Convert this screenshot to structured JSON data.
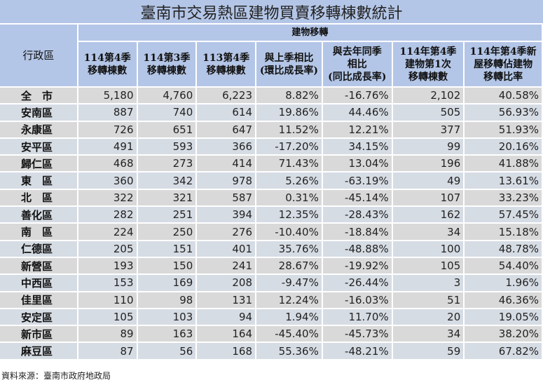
{
  "title": "臺南市交易熱區建物買賣移轉棟數統計",
  "header": {
    "district": "行政區",
    "group": "建物移轉",
    "columns": [
      "114第4季\n移轉棟數",
      "114第3季\n移轉棟數",
      "113第4季\n移轉棟數",
      "與上季相比\n(環比成長率)",
      "與去年同季\n相比\n(同比成長率)",
      "114年第4季\n建物第1次\n移轉棟數",
      "114年第4季新\n屋移轉佔建物\n移轉比率"
    ]
  },
  "rows": [
    {
      "district": "全　市",
      "q4_114": "5,180",
      "q3_114": "4,760",
      "q4_113": "6,223",
      "qoq": "8.82%",
      "yoy": "-16.76%",
      "first_transfer": "2,102",
      "new_ratio": "40.58%"
    },
    {
      "district": "安南區",
      "q4_114": "887",
      "q3_114": "740",
      "q4_113": "614",
      "qoq": "19.86%",
      "yoy": "44.46%",
      "first_transfer": "505",
      "new_ratio": "56.93%"
    },
    {
      "district": "永康區",
      "q4_114": "726",
      "q3_114": "651",
      "q4_113": "647",
      "qoq": "11.52%",
      "yoy": "12.21%",
      "first_transfer": "377",
      "new_ratio": "51.93%"
    },
    {
      "district": "安平區",
      "q4_114": "491",
      "q3_114": "593",
      "q4_113": "366",
      "qoq": "-17.20%",
      "yoy": "34.15%",
      "first_transfer": "99",
      "new_ratio": "20.16%"
    },
    {
      "district": "歸仁區",
      "q4_114": "468",
      "q3_114": "273",
      "q4_113": "414",
      "qoq": "71.43%",
      "yoy": "13.04%",
      "first_transfer": "196",
      "new_ratio": "41.88%"
    },
    {
      "district": "東　區",
      "q4_114": "360",
      "q3_114": "342",
      "q4_113": "978",
      "qoq": "5.26%",
      "yoy": "-63.19%",
      "first_transfer": "49",
      "new_ratio": "13.61%"
    },
    {
      "district": "北　區",
      "q4_114": "322",
      "q3_114": "321",
      "q4_113": "587",
      "qoq": "0.31%",
      "yoy": "-45.14%",
      "first_transfer": "107",
      "new_ratio": "33.23%"
    },
    {
      "district": "善化區",
      "q4_114": "282",
      "q3_114": "251",
      "q4_113": "394",
      "qoq": "12.35%",
      "yoy": "-28.43%",
      "first_transfer": "162",
      "new_ratio": "57.45%"
    },
    {
      "district": "南　區",
      "q4_114": "224",
      "q3_114": "250",
      "q4_113": "276",
      "qoq": "-10.40%",
      "yoy": "-18.84%",
      "first_transfer": "34",
      "new_ratio": "15.18%"
    },
    {
      "district": "仁德區",
      "q4_114": "205",
      "q3_114": "151",
      "q4_113": "401",
      "qoq": "35.76%",
      "yoy": "-48.88%",
      "first_transfer": "100",
      "new_ratio": "48.78%"
    },
    {
      "district": "新營區",
      "q4_114": "193",
      "q3_114": "150",
      "q4_113": "241",
      "qoq": "28.67%",
      "yoy": "-19.92%",
      "first_transfer": "105",
      "new_ratio": "54.40%"
    },
    {
      "district": "中西區",
      "q4_114": "153",
      "q3_114": "169",
      "q4_113": "208",
      "qoq": "-9.47%",
      "yoy": "-26.44%",
      "first_transfer": "3",
      "new_ratio": "1.96%"
    },
    {
      "district": "佳里區",
      "q4_114": "110",
      "q3_114": "98",
      "q4_113": "131",
      "qoq": "12.24%",
      "yoy": "-16.03%",
      "first_transfer": "51",
      "new_ratio": "46.36%"
    },
    {
      "district": "安定區",
      "q4_114": "105",
      "q3_114": "103",
      "q4_113": "94",
      "qoq": "1.94%",
      "yoy": "11.70%",
      "first_transfer": "20",
      "new_ratio": "19.05%"
    },
    {
      "district": "新市區",
      "q4_114": "89",
      "q3_114": "163",
      "q4_113": "164",
      "qoq": "-45.40%",
      "yoy": "-45.73%",
      "first_transfer": "34",
      "new_ratio": "38.20%"
    },
    {
      "district": "麻豆區",
      "q4_114": "87",
      "q3_114": "56",
      "q4_113": "168",
      "qoq": "55.36%",
      "yoy": "-48.21%",
      "first_transfer": "59",
      "new_ratio": "67.82%"
    }
  ],
  "footer": "資料來源：臺南市政府地政局",
  "colors": {
    "header_bg": "#b4c6e7",
    "row_gray": "#d9d9d9",
    "row_blue": "#d6dce4"
  }
}
